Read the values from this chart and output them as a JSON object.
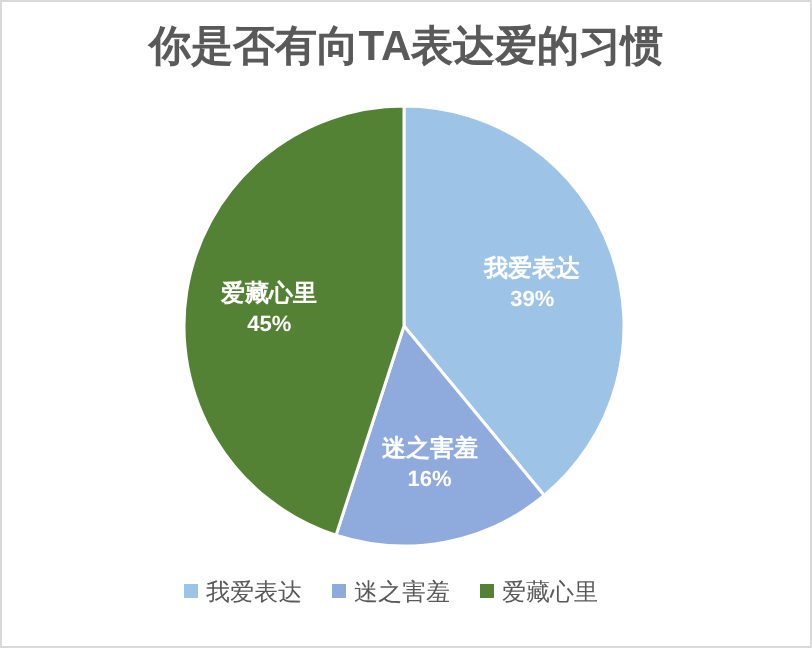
{
  "chart_data": {
    "type": "pie",
    "title": "你是否有向TA表达爱的习惯",
    "categories": [
      "我爱表达",
      "迷之害羞",
      "爱藏心里"
    ],
    "values": [
      39,
      16,
      45
    ],
    "value_labels": [
      "39%",
      "16%",
      "45%"
    ],
    "colors": [
      "#9dc3e6",
      "#8faadc",
      "#548235"
    ],
    "legend": "bottom"
  }
}
